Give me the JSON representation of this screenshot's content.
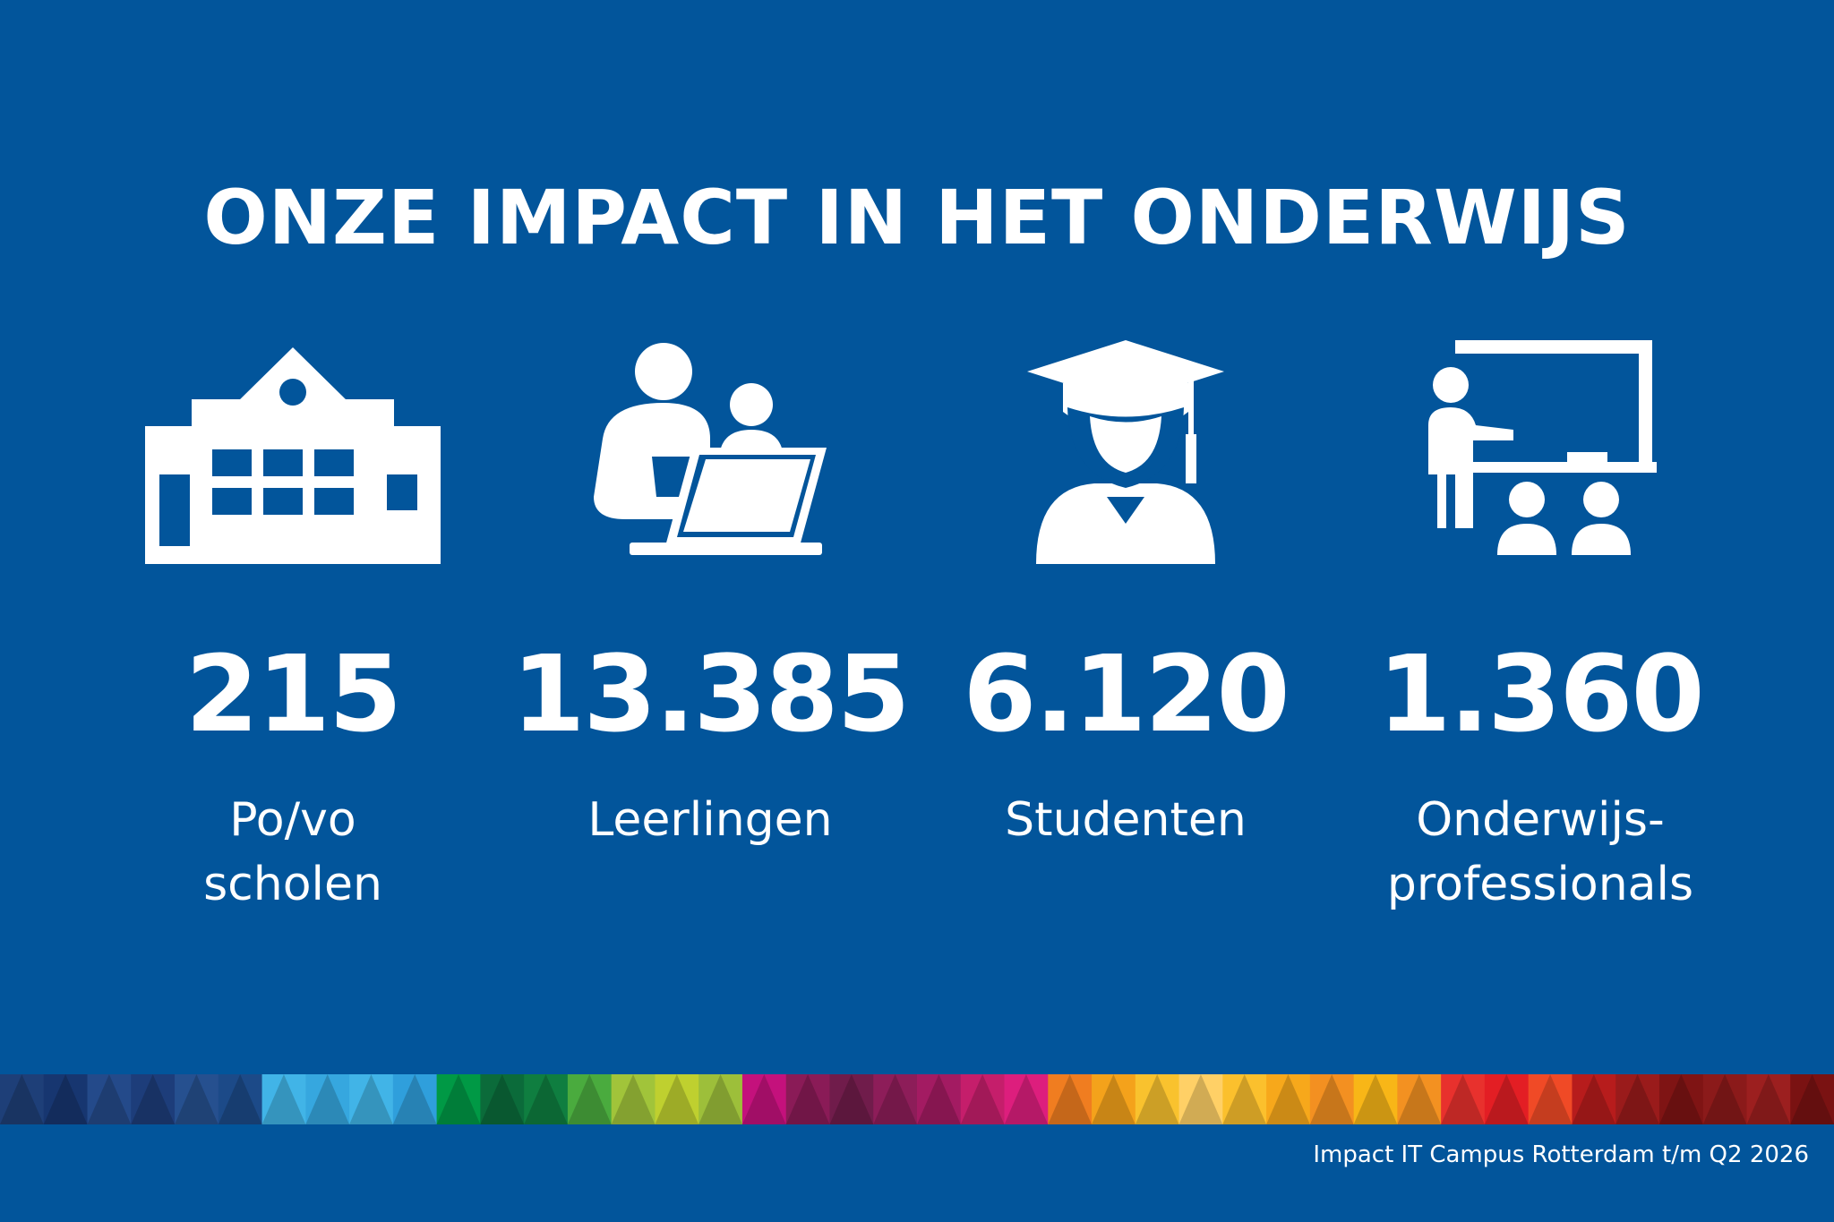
{
  "title": "ONZE IMPACT IN HET ONDERWIJS",
  "stats": [
    {
      "icon": "school-building-icon",
      "value": "215",
      "label_lines": [
        "Po/vo",
        "scholen"
      ]
    },
    {
      "icon": "students-laptop-icon",
      "value": "13.385",
      "label_lines": [
        "Leerlingen"
      ]
    },
    {
      "icon": "graduate-cap-icon",
      "value": "6.120",
      "label_lines": [
        "Studenten"
      ]
    },
    {
      "icon": "teacher-whiteboard-icon",
      "value": "1.360",
      "label_lines": [
        "Onderwijs-",
        "professionals"
      ]
    }
  ],
  "footer": "Impact IT Campus Rotterdam t/m Q2 2026",
  "colors": {
    "background": "#02559b",
    "text": "#ffffff",
    "strip": [
      "#1e3f78",
      "#173670",
      "#244a8a",
      "#1d3d7a",
      "#26508f",
      "#1c4a88",
      "#41b4e7",
      "#36a7df",
      "#41b4e7",
      "#2f9fdc",
      "#009945",
      "#0b6b3a",
      "#0f7e40",
      "#4aab3e",
      "#a1c43a",
      "#bfd02f",
      "#9dbf3a",
      "#c4117c",
      "#8a1b57",
      "#701c4b",
      "#8d1d59",
      "#a31b62",
      "#c51e6b",
      "#dd1e7d",
      "#f07d20",
      "#f4a21b",
      "#f9c22e",
      "#ffd066",
      "#fbc02d",
      "#f7a81b",
      "#f39021",
      "#f8b617",
      "#f39121",
      "#e8312d",
      "#e31e24",
      "#f04a26",
      "#b71c1c",
      "#9a1b1b",
      "#7f1414",
      "#8b1a1a",
      "#9c1f1f",
      "#7a1212"
    ]
  }
}
